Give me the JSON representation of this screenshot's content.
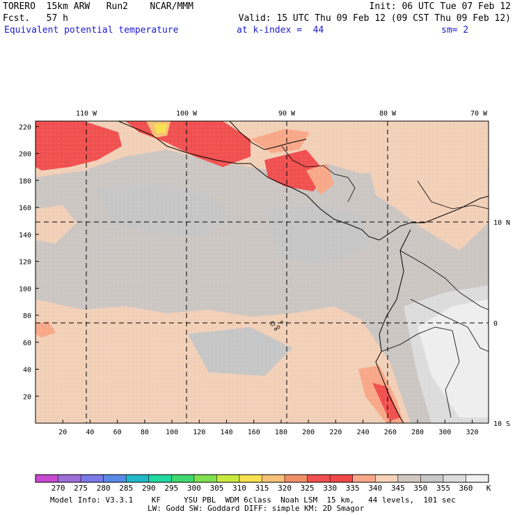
{
  "header": {
    "model": "TORERO  15km ARW   Run2    NCAR/MMM",
    "init": "Init: 06 UTC Tue 07 Feb 12",
    "fcst": "Fcst.   57 h",
    "valid": "Valid: 15 UTC Thu 09 Feb 12 (09 CST Thu 09 Feb 12)",
    "field": "Equivalent potential temperature",
    "level": "at k-index =  44",
    "smooth": "sm= 2"
  },
  "footer": {
    "line1": "Model Info: V3.3.1    KF     YSU PBL  WDM 6class  Noah LSM  15 km,   44 levels,  101 sec",
    "line2": "LW: Godd SW: Goddard DIFF: simple KM: 2D Smagor"
  },
  "chart_data": {
    "type": "heatmap",
    "title": "Equivalent potential temperature",
    "x_ticks": [
      20,
      40,
      60,
      80,
      100,
      120,
      140,
      160,
      180,
      200,
      220,
      240,
      260,
      280,
      300,
      320
    ],
    "y_ticks": [
      20,
      40,
      60,
      80,
      100,
      120,
      140,
      160,
      180,
      200,
      220
    ],
    "xlim": [
      0,
      332
    ],
    "ylim": [
      0,
      224
    ],
    "lon_labels": [
      "110 W",
      "100 W",
      "90 W",
      "80 W",
      "70 W"
    ],
    "lat_labels": [
      "10 N",
      "0",
      "10 S"
    ],
    "lon_lines_x": [
      40,
      113,
      185,
      258
    ],
    "lat_lines_y": [
      149,
      76
    ],
    "colorbar": {
      "levels": [
        "270",
        "275",
        "280",
        "285",
        "290",
        "295",
        "300",
        "305",
        "310",
        "315",
        "320",
        "325",
        "330",
        "335",
        "340",
        "345",
        "350",
        "355",
        "360"
      ],
      "unit": "K",
      "colors": [
        "#c84ad0",
        "#9d6fd8",
        "#7a7ae8",
        "#5a8ae6",
        "#23b8c8",
        "#20d8a0",
        "#40d870",
        "#80e050",
        "#c8e840",
        "#f8e050",
        "#f8c078",
        "#f09068",
        "#f05050",
        "#f04848",
        "#f8a888",
        "#f5d2b8",
        "#d2c8c0",
        "#c8c8c8",
        "#dcdcdc",
        "#f0f0f0"
      ]
    }
  }
}
